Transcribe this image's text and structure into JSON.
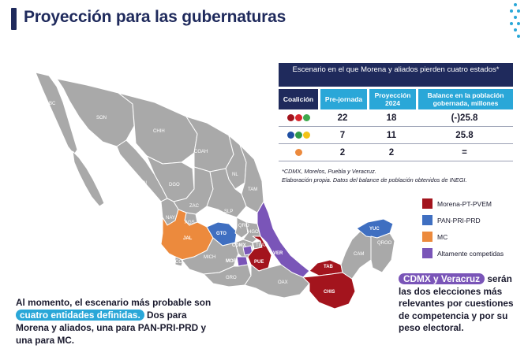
{
  "header": {
    "title": "Proyección para las gubernaturas"
  },
  "table": {
    "title": "Escenario en el que Morena y aliados pierden cuatro estados*",
    "columns": [
      "Coalición",
      "Pre-jornada",
      "Proyección 2024",
      "Balance en la población gobernada, millones"
    ],
    "rows": [
      {
        "coalition_icon": "morena-pt-pvem-logos",
        "pre": "22",
        "proj": "18",
        "balance": "(-)25.8"
      },
      {
        "coalition_icon": "pan-pri-prd-logos",
        "pre": "7",
        "proj": "11",
        "balance": "25.8"
      },
      {
        "coalition_icon": "mc-logo",
        "pre": "2",
        "proj": "2",
        "balance": "="
      }
    ]
  },
  "footnote": {
    "line1": "*CDMX, Morelos, Puebla y Veracruz.",
    "line2": "Elaboración propia. Datos del balance de población obtenidos de INEGI."
  },
  "legend": [
    {
      "label": "Morena-PT-PVEM",
      "color": "#a3141d"
    },
    {
      "label": "PAN-PRI-PRD",
      "color": "#3f6fc1"
    },
    {
      "label": "MC",
      "color": "#ec8a3d"
    },
    {
      "label": "Altamente competidas",
      "color": "#7a55b8"
    }
  ],
  "map_labels": {
    "bc": "BC",
    "son": "SON",
    "chih": "CHIH",
    "bcs": "BCS",
    "sin": "SIN",
    "dgo": "DGO",
    "coah": "COAH",
    "nl": "NL",
    "tam": "TAM",
    "zac": "ZAC",
    "slp": "SLP",
    "nay": "NAY",
    "ags": "AGS",
    "jal": "JAL",
    "gto": "GTO",
    "qro": "QRO",
    "hgo": "HGO",
    "mich": "MICH",
    "cdmx": "CDMX",
    "mor": "MOR",
    "pue": "PUE",
    "tlax": "TLAX",
    "ver": "VER",
    "gro": "GRO",
    "oax": "OAX",
    "tab": "TAB",
    "chis": "CHIS",
    "cam": "CAM",
    "yuc": "YUC",
    "qroo": "QROO",
    "col": "COL"
  },
  "colors": {
    "navy": "#1f2a5c",
    "cyan": "#2aa7d8",
    "gray_state": "#a9a9a9",
    "red": "#a3141d",
    "blue": "#3f6fc1",
    "orange": "#ec8a3d",
    "purple": "#7a55b8"
  },
  "bottom_left": {
    "p1": "Al momento, el escenario más probable son",
    "highlight": "cuatro entidades definidas.",
    "p2": "Dos para Morena y aliados, una para PAN-PRI-PRD y una para MC."
  },
  "bottom_right": {
    "highlight": "CDMX y Veracruz",
    "text": "serán las dos elecciones más relevantes por cuestiones de competencia y por su peso electoral."
  }
}
